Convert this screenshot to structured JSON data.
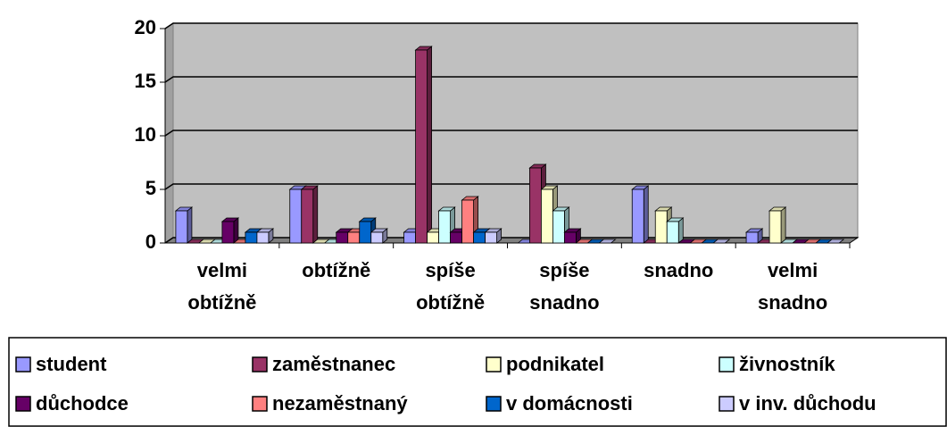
{
  "chart_data": {
    "type": "bar",
    "categories": [
      "velmi obtížně",
      "obtížně",
      "spíše obtížně",
      "spíše snadno",
      "snadno",
      "velmi snadno"
    ],
    "series": [
      {
        "name": "student",
        "color": "#9999ff",
        "values": [
          3,
          5,
          1,
          0,
          5,
          1
        ]
      },
      {
        "name": "zaměstnanec",
        "color": "#993366",
        "values": [
          0,
          5,
          18,
          7,
          0,
          0
        ]
      },
      {
        "name": "podnikatel",
        "color": "#ffffcc",
        "values": [
          0,
          0,
          1,
          5,
          3,
          3
        ]
      },
      {
        "name": "živnostník",
        "color": "#ccffff",
        "values": [
          0,
          0,
          3,
          3,
          2,
          0
        ]
      },
      {
        "name": "důchodce",
        "color": "#660066",
        "values": [
          2,
          1,
          1,
          1,
          0,
          0
        ]
      },
      {
        "name": "nezaměstnaný",
        "color": "#ff8080",
        "values": [
          0,
          1,
          4,
          0,
          0,
          0
        ]
      },
      {
        "name": "v domácnosti",
        "color": "#0066cc",
        "values": [
          1,
          2,
          1,
          0,
          0,
          0
        ]
      },
      {
        "name": "v inv. důchodu",
        "color": "#ccccff",
        "values": [
          1,
          1,
          1,
          0,
          0,
          0
        ]
      }
    ],
    "ylim": [
      0,
      20
    ],
    "yticks": [
      0,
      5,
      10,
      15,
      20
    ],
    "grid": true,
    "legend": "bottom"
  }
}
